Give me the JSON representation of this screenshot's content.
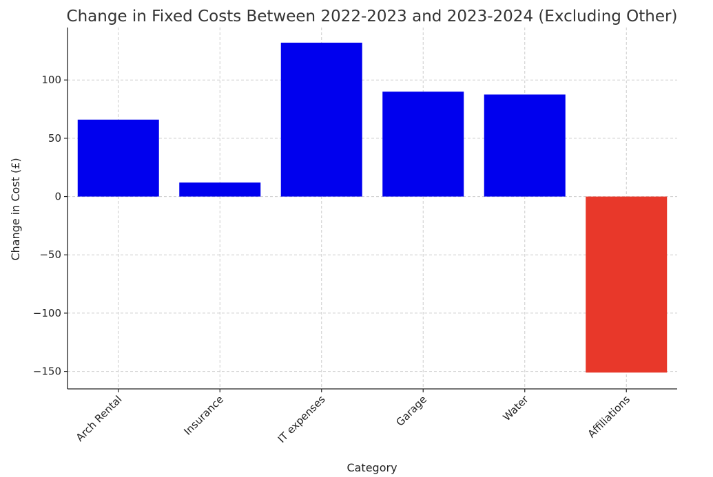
{
  "chart_data": {
    "type": "bar",
    "title": "Change in Fixed Costs Between 2022-2023 and 2023-2024 (Excluding Other)",
    "xlabel": "Category",
    "ylabel": "Change in Cost (£)",
    "categories": [
      "Arch Rental",
      "Insurance",
      "IT expenses",
      "Garage",
      "Water",
      "Affiliations"
    ],
    "values": [
      66,
      12,
      132,
      90,
      87.5,
      -151
    ],
    "ylim": [
      -165,
      145
    ],
    "yticks": [
      -150,
      -100,
      -50,
      0,
      50,
      100
    ],
    "ytick_labels": [
      "−150",
      "−100",
      "−50",
      "0",
      "50",
      "100"
    ],
    "grid": true,
    "colors": {
      "positive": "#0000ee",
      "negative": "#e8382a"
    }
  }
}
